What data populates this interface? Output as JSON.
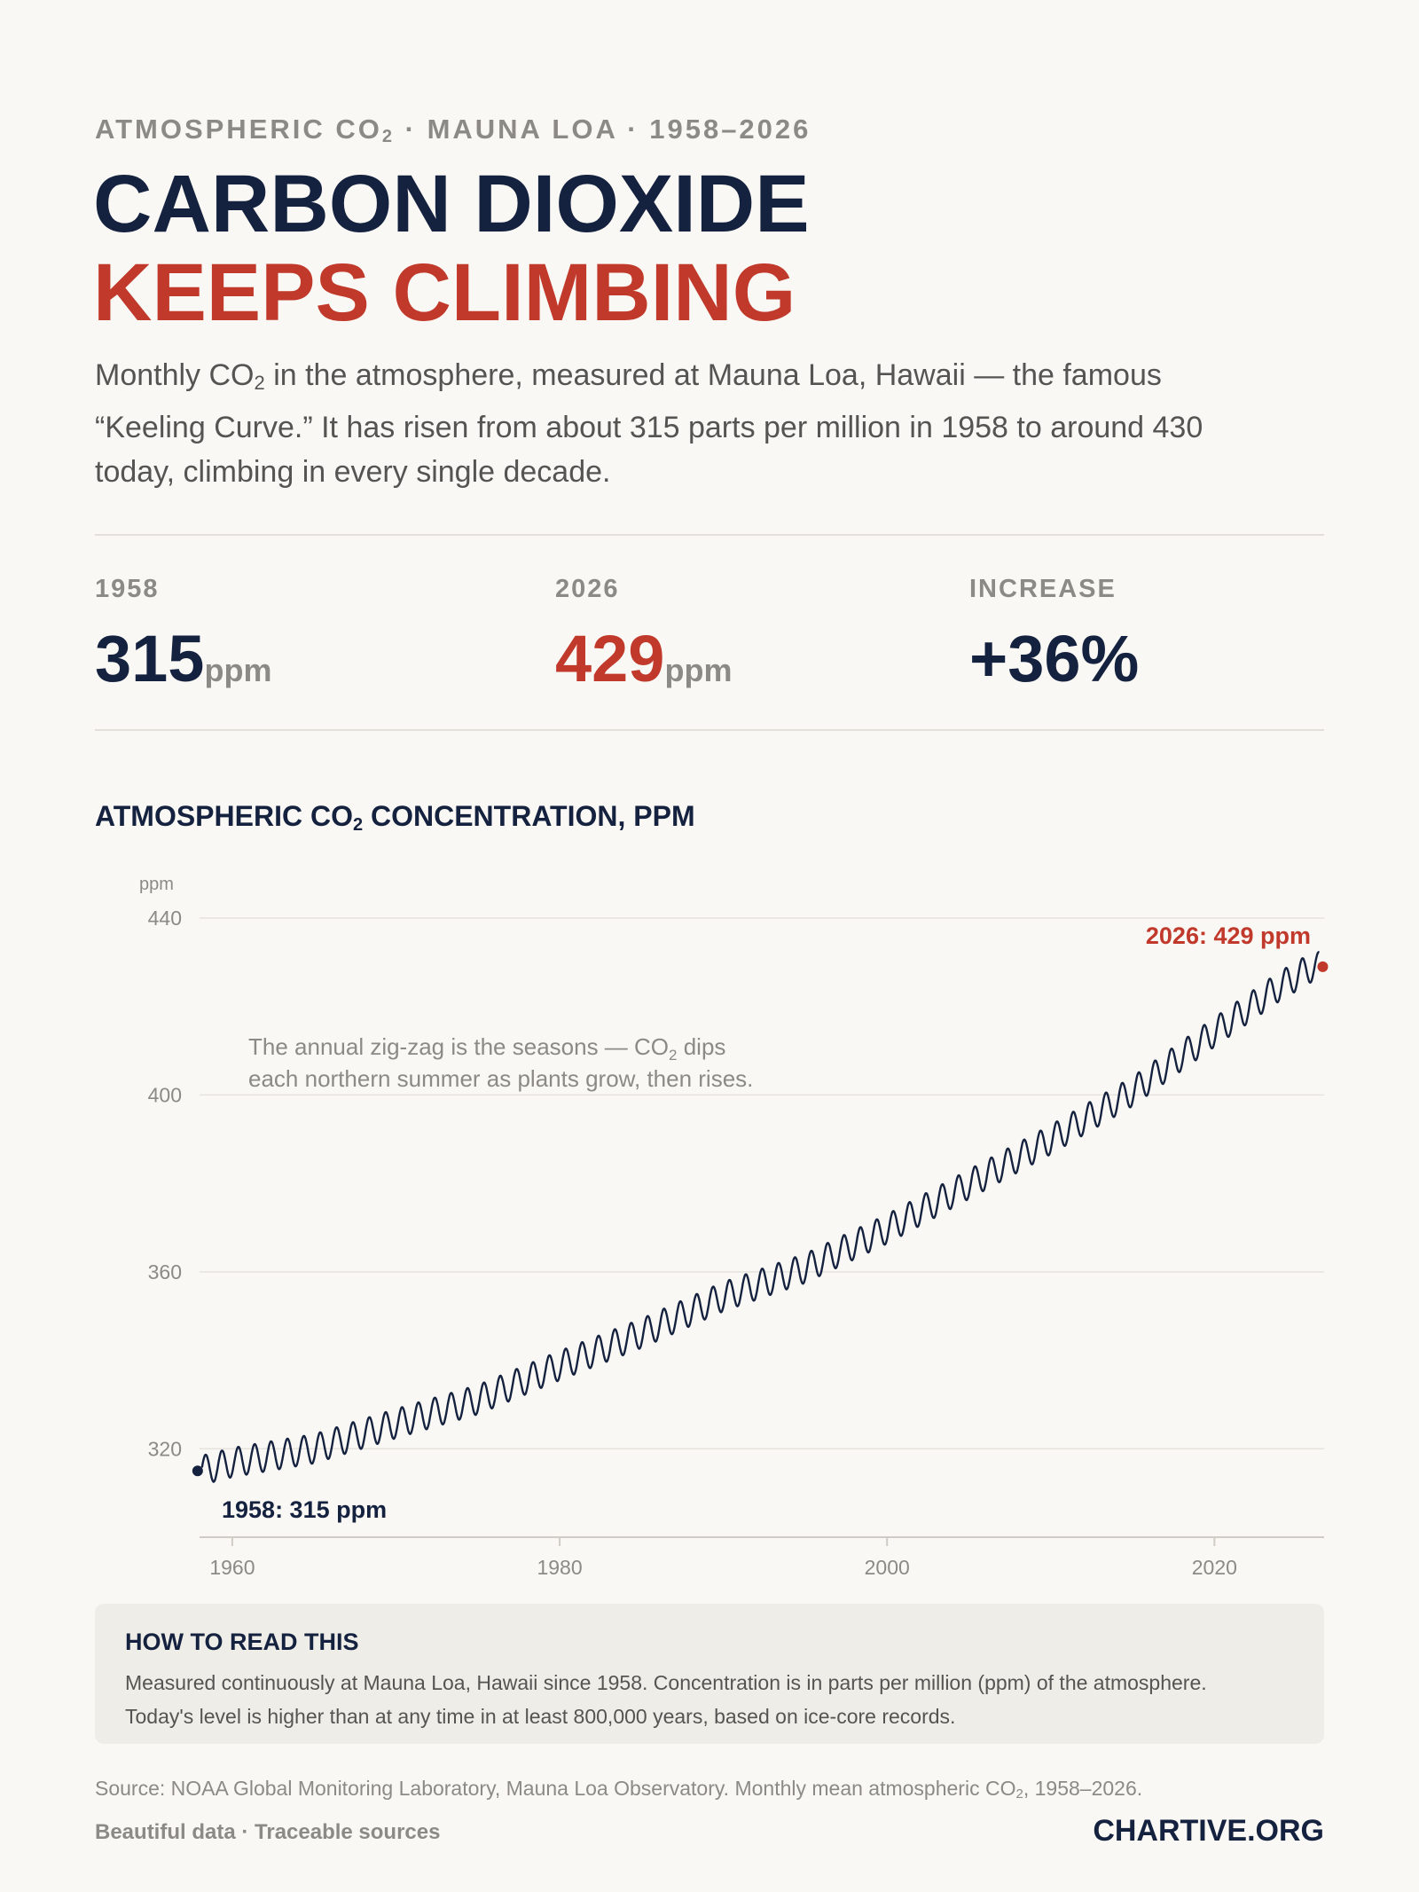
{
  "header": {
    "kicker_a": "ATMOSPHERIC CO",
    "kicker_sub": "2",
    "kicker_b": " · MAUNA LOA · 1958–2026",
    "title_line1": "CARBON DIOXIDE",
    "title_line2": "KEEPS CLIMBING",
    "lede_a": "Monthly CO",
    "lede_sub": "2",
    "lede_b": " in the atmosphere, measured at Mauna Loa, Hawaii — the famous “Keeling Curve.” It has risen from about 315 parts per million in 1958 to around 430 today, climbing in every single decade."
  },
  "stats": [
    {
      "label": "1958",
      "value": "315",
      "unit": "ppm"
    },
    {
      "label": "2026",
      "value": "429",
      "unit": "ppm"
    },
    {
      "label": "INCREASE",
      "value": "+36%",
      "unit": ""
    }
  ],
  "chart_title_a": "ATMOSPHERIC CO",
  "chart_title_sub": "2",
  "chart_title_b": " CONCENTRATION, PPM",
  "colors": {
    "navy": "#15223f",
    "red": "#c0392b",
    "grid": "#e6e3dd",
    "muted": "#8c8a86"
  },
  "chart_data": {
    "type": "line",
    "ylabel": "ppm",
    "xlim": [
      1958,
      2026.7
    ],
    "ylim": [
      300,
      440
    ],
    "x_ticks": [
      1960,
      1980,
      2000,
      2020
    ],
    "y_ticks": [
      320,
      360,
      400,
      440
    ],
    "grid": true,
    "series": [
      {
        "seasonal_amplitude": 3.3,
        "yearly_mean": [
          [
            1958,
            315.0
          ],
          [
            1960,
            316.9
          ],
          [
            1965,
            320.0
          ],
          [
            1970,
            325.7
          ],
          [
            1975,
            331.1
          ],
          [
            1980,
            338.8
          ],
          [
            1985,
            346.1
          ],
          [
            1990,
            354.4
          ],
          [
            1995,
            360.8
          ],
          [
            2000,
            369.7
          ],
          [
            2005,
            379.8
          ],
          [
            2010,
            389.9
          ],
          [
            2015,
            400.8
          ],
          [
            2020,
            414.2
          ],
          [
            2024,
            424.6
          ],
          [
            2026,
            429.0
          ]
        ]
      }
    ],
    "annotation": {
      "line1_a": "The annual zig-zag is the seasons — CO",
      "line1_sub": "2",
      "line1_b": " dips",
      "line2": "each northern summer as plants grow, then rises."
    },
    "start_point": {
      "x": 1958.1,
      "y": 315.0,
      "label": "1958: 315 ppm"
    },
    "end_point": {
      "x": 2026.4,
      "y": 429.0,
      "label": "2026: 429 ppm"
    }
  },
  "note": {
    "heading": "HOW TO READ THIS",
    "line1": "Measured continuously at Mauna Loa, Hawaii since 1958. Concentration is in parts per million (ppm) of the atmosphere.",
    "line2": "Today's level is higher than at any time in at least 800,000 years, based on ice-core records."
  },
  "footer": {
    "source_a": "Source: NOAA Global Monitoring Laboratory, Mauna Loa Observatory. Monthly mean atmospheric CO",
    "source_sub": "2",
    "source_b": ", 1958–2026.",
    "tagline": "Beautiful data · Traceable sources",
    "brand": "CHARTIVE.ORG"
  }
}
